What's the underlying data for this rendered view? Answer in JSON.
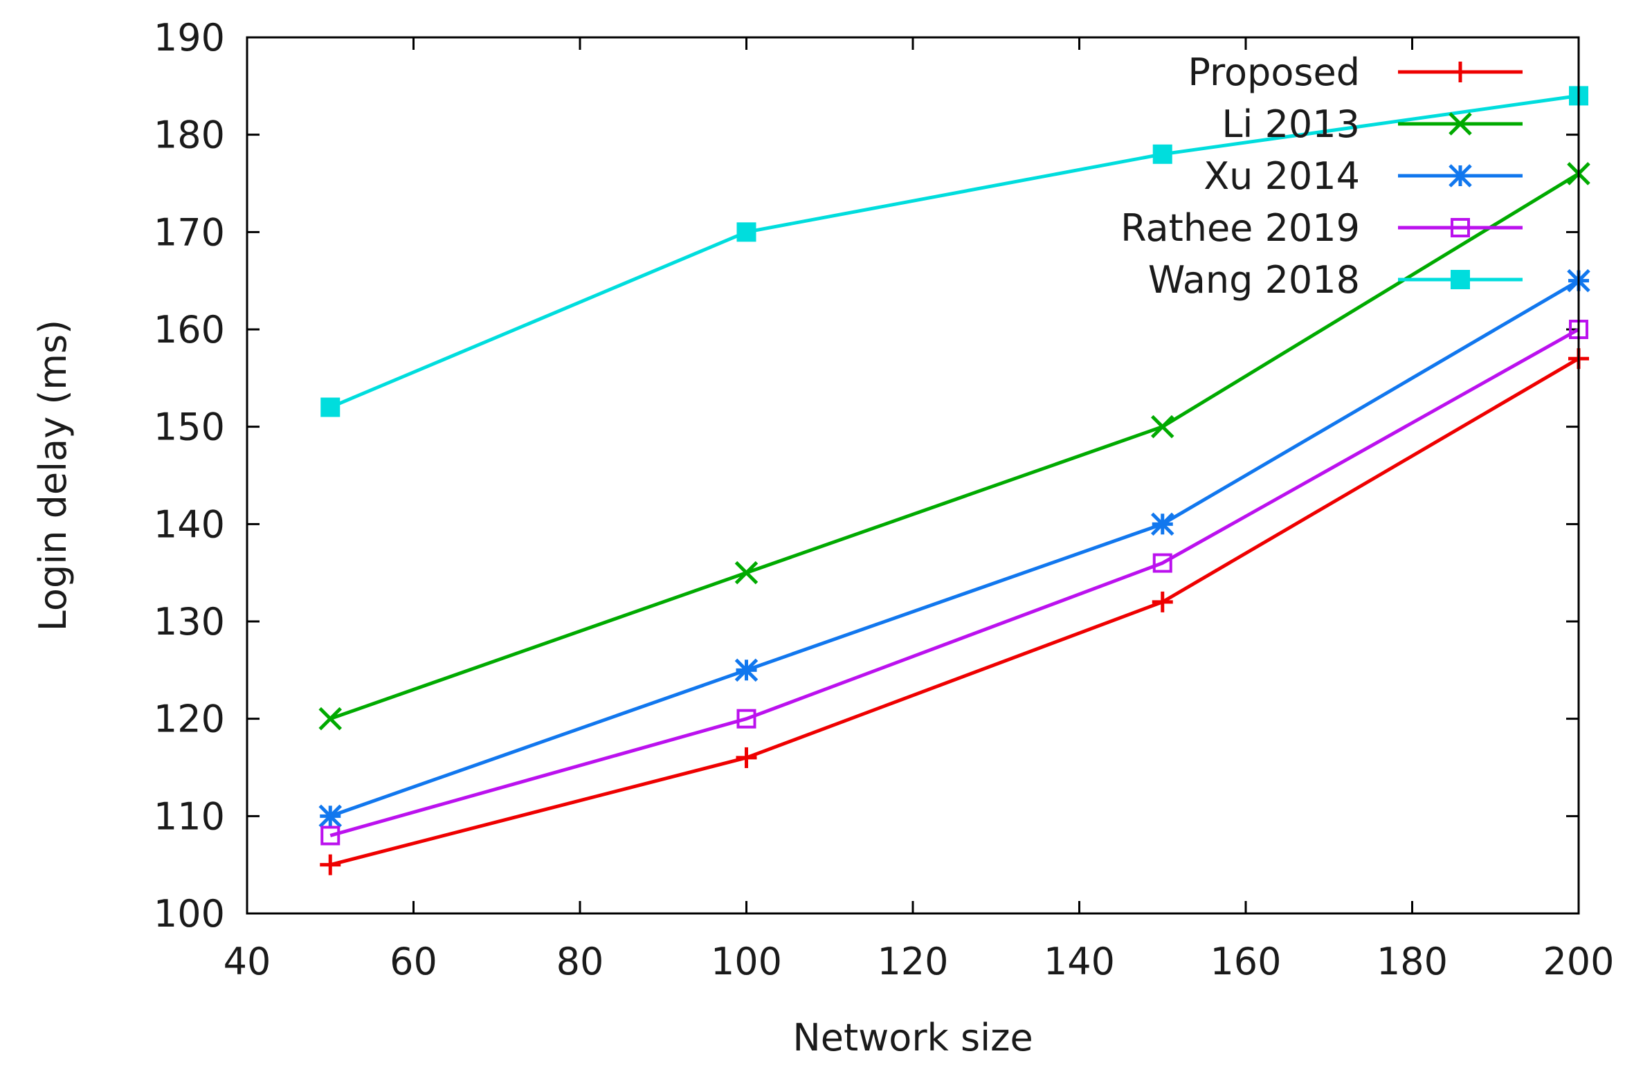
{
  "chart_data": {
    "type": "line",
    "title": "",
    "xlabel": "Network size",
    "ylabel": "Login delay (ms)",
    "xlim": [
      40,
      200
    ],
    "ylim": [
      100,
      190
    ],
    "xticks": [
      40,
      60,
      80,
      100,
      120,
      140,
      160,
      180,
      200
    ],
    "yticks": [
      100,
      110,
      120,
      130,
      140,
      150,
      160,
      170,
      180,
      190
    ],
    "grid": false,
    "legend_position": "top-right",
    "x": [
      50,
      100,
      150,
      200
    ],
    "series": [
      {
        "name": "Proposed",
        "values": [
          105,
          116,
          132,
          157
        ],
        "color": "#ee0000",
        "marker": "plus"
      },
      {
        "name": "Li 2013",
        "values": [
          120,
          135,
          150,
          176
        ],
        "color": "#00aa00",
        "marker": "cross"
      },
      {
        "name": "Xu 2014",
        "values": [
          110,
          125,
          140,
          165
        ],
        "color": "#1177ee",
        "marker": "star"
      },
      {
        "name": "Rathee 2019",
        "values": [
          108,
          120,
          136,
          160
        ],
        "color": "#bb11ee",
        "marker": "open-square"
      },
      {
        "name": "Wang 2018",
        "values": [
          152,
          170,
          178,
          184
        ],
        "color": "#00dddd",
        "marker": "filled-square"
      }
    ]
  }
}
